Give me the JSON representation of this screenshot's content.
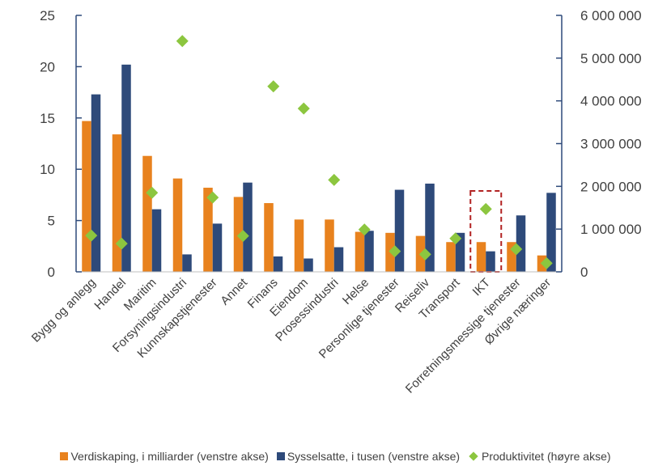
{
  "chart_data": {
    "type": "bar",
    "categories": [
      "Bygg og anlegg",
      "Handel",
      "Maritim",
      "Forsyningsindustri",
      "Kunnskapstjenester",
      "Annet",
      "Finans",
      "Eiendom",
      "Prosessindustri",
      "Helse",
      "Personlige tjenester",
      "Reiseliv",
      "Transport",
      "IKT",
      "Forretningsmessige tjenester",
      "Øvrige næringer"
    ],
    "series": [
      {
        "name": "Verdiskaping, i milliarder (venstre akse)",
        "axis": "left",
        "type": "bar",
        "color": "#E8821E",
        "values": [
          14.7,
          13.4,
          11.3,
          9.1,
          8.2,
          7.3,
          6.7,
          5.1,
          5.1,
          3.9,
          3.8,
          3.5,
          2.9,
          2.9,
          2.9,
          1.6
        ]
      },
      {
        "name": "Sysselsatte, i tusen (venstre akse)",
        "axis": "left",
        "type": "bar",
        "color": "#2E4A7A",
        "values": [
          17.3,
          20.2,
          6.1,
          1.7,
          4.7,
          8.7,
          1.5,
          1.3,
          2.4,
          4.0,
          8.0,
          8.6,
          3.8,
          2.0,
          5.5,
          7.7
        ]
      },
      {
        "name": "Produktivitet (høyre akse)",
        "axis": "right",
        "type": "scatter",
        "color": "#8CC63F",
        "values": [
          850000,
          660000,
          1850000,
          5400000,
          1740000,
          840000,
          4340000,
          3820000,
          2150000,
          990000,
          480000,
          410000,
          780000,
          1470000,
          530000,
          200000
        ]
      }
    ],
    "left_axis": {
      "ylim": [
        0,
        25
      ],
      "ticks": [
        "0",
        "5",
        "10",
        "15",
        "20",
        "25"
      ],
      "tick_values": [
        0,
        5,
        10,
        15,
        20,
        25
      ]
    },
    "right_axis": {
      "ylim": [
        0,
        6000000
      ],
      "ticks": [
        "0",
        "1 000 000",
        "2 000 000",
        "3 000 000",
        "4 000 000",
        "5 000 000",
        "6 000 000"
      ],
      "tick_values": [
        0,
        1000000,
        2000000,
        3000000,
        4000000,
        5000000,
        6000000
      ]
    },
    "highlight": {
      "category": "IKT",
      "color": "#B22222",
      "style": "dashed"
    },
    "grid": false,
    "legend_position": "bottom"
  },
  "legend": {
    "bar1": "Verdiskaping, i milliarder (venstre akse)",
    "bar2": "Sysselsatte, i tusen (venstre akse)",
    "scatter": "Produktivitet (høyre akse)"
  }
}
